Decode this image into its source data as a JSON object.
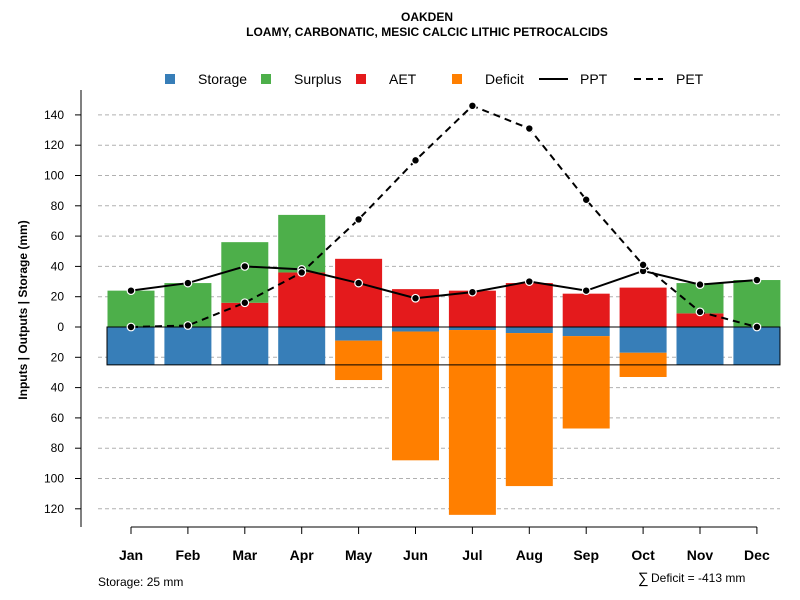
{
  "chart_data": {
    "type": "bar",
    "title": "OAKDEN",
    "subtitle": "LOAMY, CARBONATIC, MESIC CALCIC LITHIC PETROCALCIDS",
    "ylabel": "Inputs | Outputs | Storage    (mm)",
    "y_ticks_up": [
      0,
      20,
      40,
      60,
      80,
      100,
      120,
      140
    ],
    "y_ticks_down": [
      20,
      40,
      60,
      80,
      100,
      120
    ],
    "ylim": [
      -125,
      150
    ],
    "categories": [
      "Jan",
      "Feb",
      "Mar",
      "Apr",
      "May",
      "Jun",
      "Jul",
      "Aug",
      "Sep",
      "Oct",
      "Nov",
      "Dec"
    ],
    "series": [
      {
        "name": "Storage",
        "color": "#377EB8",
        "values": [
          25,
          25,
          25,
          25,
          9,
          3,
          2,
          4,
          6,
          17,
          25,
          25
        ]
      },
      {
        "name": "Surplus",
        "color": "#4DAF4A",
        "values": [
          24,
          29,
          40,
          38,
          0,
          0,
          0,
          0,
          0,
          0,
          20,
          31
        ]
      },
      {
        "name": "AET",
        "color": "#E41A1C",
        "values": [
          0,
          0,
          16,
          36,
          45,
          25,
          24,
          29,
          22,
          26,
          9,
          0
        ]
      },
      {
        "name": "Deficit",
        "color": "#FF7F00",
        "values": [
          0,
          0,
          0,
          0,
          26,
          85,
          122,
          101,
          61,
          16,
          0,
          0
        ]
      },
      {
        "name": "PPT",
        "style": "solid",
        "values": [
          24,
          29,
          40,
          38,
          29,
          19,
          23,
          30,
          24,
          37,
          28,
          31
        ]
      },
      {
        "name": "PET",
        "style": "dashed",
        "values": [
          0,
          1,
          16,
          36,
          71,
          110,
          146,
          131,
          84,
          41,
          10,
          0
        ]
      }
    ],
    "storage_capacity": 25,
    "legend": [
      "Storage",
      "Surplus",
      "AET",
      "Deficit",
      "PPT",
      "PET"
    ],
    "legend_position": "top",
    "grid": true
  },
  "notes": {
    "storage": "Storage: 25 mm",
    "deficit_symbol": "∑",
    "deficit": "Deficit = -413 mm"
  }
}
